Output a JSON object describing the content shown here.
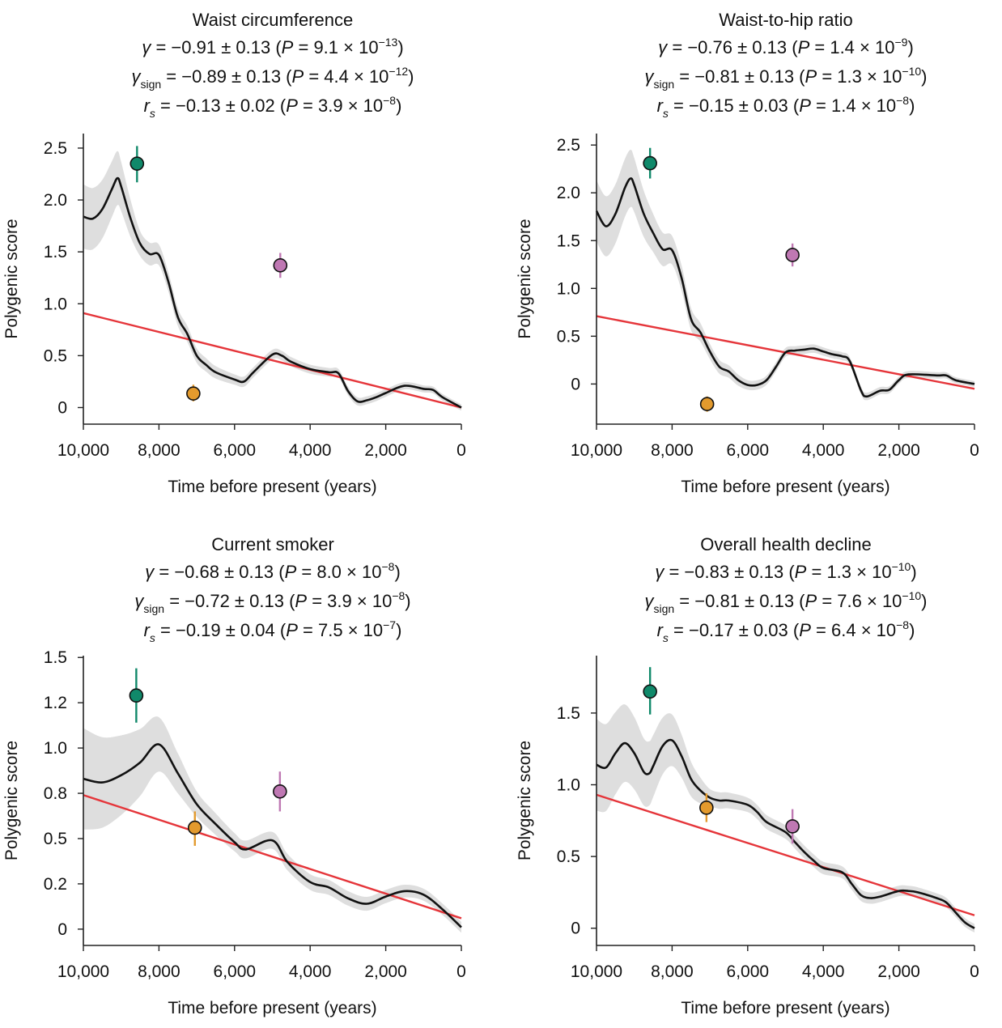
{
  "notation": {
    "eq": " = ",
    "open": " (",
    "p": "P",
    "times": " × 10",
    "close": ")"
  },
  "colors": {
    "curve": "#111111",
    "band": "#dedede",
    "fit": "#e5353a",
    "green": "#10896a",
    "orange": "#e39a2d",
    "purple": "#bf78b3"
  },
  "chart_data": [
    {
      "type": "line",
      "title": "Waist circumference",
      "stats": [
        {
          "symbol": "γ",
          "sub": "",
          "estimate": "−0.91 ± 0.13",
          "p_mantissa": "9.1",
          "p_exponent": "−13"
        },
        {
          "symbol": "γ",
          "sub": "sign",
          "estimate": "−0.89 ± 0.13",
          "p_mantissa": "4.4",
          "p_exponent": "−12"
        },
        {
          "symbol": "r",
          "sub": "s",
          "estimate": "−0.13 ± 0.02",
          "p_mantissa": "3.9",
          "p_exponent": "−8"
        }
      ],
      "xlabel": "Time before present (years)",
      "ylabel": "Polygenic score",
      "xlim": [
        10000,
        0
      ],
      "ylim": [
        -0.16,
        2.64
      ],
      "xticks": [
        10000,
        8000,
        6000,
        4000,
        2000,
        0
      ],
      "xtick_labels": [
        "10,000",
        "8,000",
        "6,000",
        "4,000",
        "2,000",
        "0"
      ],
      "yticks": [
        0,
        0.5,
        1.0,
        1.5,
        2.0,
        2.5
      ],
      "ytick_labels": [
        "0",
        "0.5",
        "1.0",
        "1.5",
        "2.0",
        "2.5"
      ],
      "curve": [
        [
          10000,
          1.84
        ],
        [
          9750,
          1.82
        ],
        [
          9500,
          1.91
        ],
        [
          9250,
          2.1
        ],
        [
          9100,
          2.21
        ],
        [
          9000,
          2.13
        ],
        [
          8750,
          1.82
        ],
        [
          8500,
          1.58
        ],
        [
          8250,
          1.48
        ],
        [
          8000,
          1.47
        ],
        [
          7750,
          1.21
        ],
        [
          7500,
          0.87
        ],
        [
          7250,
          0.71
        ],
        [
          7000,
          0.5
        ],
        [
          6750,
          0.41
        ],
        [
          6500,
          0.34
        ],
        [
          6000,
          0.27
        ],
        [
          5750,
          0.25
        ],
        [
          5500,
          0.34
        ],
        [
          5000,
          0.51
        ],
        [
          4750,
          0.5
        ],
        [
          4500,
          0.44
        ],
        [
          4000,
          0.37
        ],
        [
          3500,
          0.34
        ],
        [
          3250,
          0.33
        ],
        [
          3000,
          0.16
        ],
        [
          2750,
          0.06
        ],
        [
          2500,
          0.07
        ],
        [
          2250,
          0.1
        ],
        [
          2000,
          0.14
        ],
        [
          1500,
          0.21
        ],
        [
          1000,
          0.18
        ],
        [
          750,
          0.17
        ],
        [
          500,
          0.1
        ],
        [
          0,
          0.0
        ]
      ],
      "ci_halfwidth": [
        [
          10000,
          0.31
        ],
        [
          9100,
          0.26
        ],
        [
          8500,
          0.12
        ],
        [
          8000,
          0.1
        ],
        [
          7000,
          0.07
        ],
        [
          6000,
          0.05
        ],
        [
          0,
          0.03
        ]
      ],
      "fit_line": {
        "x": [
          10000,
          0
        ],
        "y": [
          0.91,
          0.0
        ]
      },
      "points": [
        {
          "group": "green",
          "x": 8580,
          "y": 2.35,
          "lo": 2.17,
          "hi": 2.52
        },
        {
          "group": "orange",
          "x": 7090,
          "y": 0.135,
          "lo": 0.06,
          "hi": 0.22
        },
        {
          "group": "purple",
          "x": 4790,
          "y": 1.37,
          "lo": 1.25,
          "hi": 1.49
        }
      ]
    },
    {
      "type": "line",
      "title": "Waist-to-hip ratio",
      "stats": [
        {
          "symbol": "γ",
          "sub": "",
          "estimate": "−0.76 ± 0.13",
          "p_mantissa": "1.4",
          "p_exponent": "−9"
        },
        {
          "symbol": "γ",
          "sub": "sign",
          "estimate": "−0.81 ± 0.13",
          "p_mantissa": "1.3",
          "p_exponent": "−10"
        },
        {
          "symbol": "r",
          "sub": "s",
          "estimate": "−0.15 ± 0.03",
          "p_mantissa": "1.4",
          "p_exponent": "−8"
        }
      ],
      "xlabel": "Time before present (years)",
      "ylabel": "Polygenic score",
      "xlim": [
        10000,
        0
      ],
      "ylim": [
        -0.42,
        2.62
      ],
      "xticks": [
        10000,
        8000,
        6000,
        4000,
        2000,
        0
      ],
      "xtick_labels": [
        "10,000",
        "8,000",
        "6,000",
        "4,000",
        "2,000",
        "0"
      ],
      "yticks": [
        0,
        0.5,
        1.0,
        1.5,
        2.0,
        2.5
      ],
      "ytick_labels": [
        "0",
        "0.5",
        "1.0",
        "1.5",
        "2.0",
        "2.5"
      ],
      "curve": [
        [
          10000,
          1.81
        ],
        [
          9750,
          1.65
        ],
        [
          9500,
          1.78
        ],
        [
          9250,
          2.05
        ],
        [
          9100,
          2.15
        ],
        [
          9000,
          2.08
        ],
        [
          8750,
          1.78
        ],
        [
          8500,
          1.58
        ],
        [
          8250,
          1.41
        ],
        [
          8000,
          1.4
        ],
        [
          7750,
          1.11
        ],
        [
          7500,
          0.68
        ],
        [
          7250,
          0.54
        ],
        [
          7000,
          0.34
        ],
        [
          6750,
          0.18
        ],
        [
          6500,
          0.13
        ],
        [
          6250,
          0.04
        ],
        [
          6000,
          -0.01
        ],
        [
          5750,
          -0.01
        ],
        [
          5500,
          0.04
        ],
        [
          5250,
          0.18
        ],
        [
          5000,
          0.33
        ],
        [
          4750,
          0.35
        ],
        [
          4500,
          0.36
        ],
        [
          4250,
          0.37
        ],
        [
          4000,
          0.34
        ],
        [
          3750,
          0.31
        ],
        [
          3500,
          0.29
        ],
        [
          3300,
          0.24
        ],
        [
          3000,
          -0.07
        ],
        [
          2850,
          -0.13
        ],
        [
          2500,
          -0.07
        ],
        [
          2250,
          -0.06
        ],
        [
          2000,
          0.04
        ],
        [
          1750,
          0.1
        ],
        [
          1000,
          0.09
        ],
        [
          750,
          0.09
        ],
        [
          500,
          0.04
        ],
        [
          0,
          0.0
        ]
      ],
      "ci_halfwidth": [
        [
          10000,
          0.32
        ],
        [
          9100,
          0.3
        ],
        [
          8500,
          0.2
        ],
        [
          8000,
          0.15
        ],
        [
          7000,
          0.08
        ],
        [
          6000,
          0.05
        ],
        [
          0,
          0.03
        ]
      ],
      "fit_line": {
        "x": [
          10000,
          0
        ],
        "y": [
          0.71,
          -0.05
        ]
      },
      "points": [
        {
          "group": "green",
          "x": 8583,
          "y": 2.31,
          "lo": 2.15,
          "hi": 2.47
        },
        {
          "group": "orange",
          "x": 7074,
          "y": -0.21,
          "lo": -0.29,
          "hi": -0.13
        },
        {
          "group": "purple",
          "x": 4815,
          "y": 1.35,
          "lo": 1.23,
          "hi": 1.47
        }
      ]
    },
    {
      "type": "line",
      "title": "Current smoker",
      "stats": [
        {
          "symbol": "γ",
          "sub": "",
          "estimate": "−0.68 ± 0.13",
          "p_mantissa": "8.0",
          "p_exponent": "−8"
        },
        {
          "symbol": "γ",
          "sub": "sign",
          "estimate": "−0.72 ± 0.13",
          "p_mantissa": "3.9",
          "p_exponent": "−8"
        },
        {
          "symbol": "r",
          "sub": "s",
          "estimate": "−0.19 ± 0.04",
          "p_mantissa": "7.5",
          "p_exponent": "−7"
        }
      ],
      "xlabel": "Time before present (years)",
      "ylabel": "Polygenic score",
      "xlim": [
        10000,
        0
      ],
      "ylim": [
        -0.09,
        1.51
      ],
      "xticks": [
        10000,
        8000,
        6000,
        4000,
        2000,
        0
      ],
      "xtick_labels": [
        "10,000",
        "8,000",
        "6,000",
        "4,000",
        "2,000",
        "0"
      ],
      "yticks": [
        0,
        0.25,
        0.5,
        0.75,
        1.0,
        1.25,
        1.5
      ],
      "ytick_labels": [
        "0",
        "0.2",
        "0.5",
        "0.8",
        "1.0",
        "1.2",
        "1.5"
      ],
      "curve": [
        [
          10000,
          0.83
        ],
        [
          9500,
          0.81
        ],
        [
          9000,
          0.85
        ],
        [
          8500,
          0.92
        ],
        [
          8000,
          1.02
        ],
        [
          7500,
          0.86
        ],
        [
          7000,
          0.69
        ],
        [
          6500,
          0.58
        ],
        [
          6000,
          0.48
        ],
        [
          5700,
          0.44
        ],
        [
          5000,
          0.49
        ],
        [
          4600,
          0.37
        ],
        [
          4000,
          0.26
        ],
        [
          3500,
          0.23
        ],
        [
          3000,
          0.17
        ],
        [
          2500,
          0.14
        ],
        [
          2000,
          0.18
        ],
        [
          1500,
          0.21
        ],
        [
          1000,
          0.19
        ],
        [
          500,
          0.11
        ],
        [
          0,
          0.01
        ]
      ],
      "ci_halfwidth": [
        [
          10000,
          0.28
        ],
        [
          9000,
          0.22
        ],
        [
          8000,
          0.15
        ],
        [
          7000,
          0.07
        ],
        [
          6000,
          0.05
        ],
        [
          0,
          0.03
        ]
      ],
      "fit_line": {
        "x": [
          10000,
          0
        ],
        "y": [
          0.74,
          0.06
        ]
      },
      "points": [
        {
          "group": "green",
          "x": 8600,
          "y": 1.29,
          "lo": 1.14,
          "hi": 1.44
        },
        {
          "group": "orange",
          "x": 7050,
          "y": 0.56,
          "lo": 0.46,
          "hi": 0.65
        },
        {
          "group": "purple",
          "x": 4800,
          "y": 0.76,
          "lo": 0.65,
          "hi": 0.87
        }
      ]
    },
    {
      "type": "line",
      "title": "Overall health decline",
      "stats": [
        {
          "symbol": "γ",
          "sub": "",
          "estimate": "−0.83 ± 0.13",
          "p_mantissa": "1.3",
          "p_exponent": "−10"
        },
        {
          "symbol": "γ",
          "sub": "sign",
          "estimate": "−0.81 ± 0.13",
          "p_mantissa": "7.6",
          "p_exponent": "−10"
        },
        {
          "symbol": "r",
          "sub": "s",
          "estimate": "−0.17 ± 0.03",
          "p_mantissa": "6.4",
          "p_exponent": "−8"
        }
      ],
      "xlabel": "Time before present (years)",
      "ylabel": "Polygenic score",
      "xlim": [
        10000,
        0
      ],
      "ylim": [
        -0.12,
        1.9
      ],
      "xticks": [
        10000,
        8000,
        6000,
        4000,
        2000,
        0
      ],
      "xtick_labels": [
        "10,000",
        "8,000",
        "6,000",
        "4,000",
        "2,000",
        "0"
      ],
      "yticks": [
        0,
        0.5,
        1.0,
        1.5
      ],
      "ytick_labels": [
        "0",
        "0.5",
        "1.0",
        "1.5"
      ],
      "curve": [
        [
          10000,
          1.14
        ],
        [
          9750,
          1.12
        ],
        [
          9500,
          1.22
        ],
        [
          9250,
          1.29
        ],
        [
          9000,
          1.22
        ],
        [
          8750,
          1.09
        ],
        [
          8600,
          1.08
        ],
        [
          8500,
          1.13
        ],
        [
          8250,
          1.27
        ],
        [
          8000,
          1.31
        ],
        [
          7750,
          1.2
        ],
        [
          7500,
          1.04
        ],
        [
          7250,
          0.96
        ],
        [
          7000,
          0.91
        ],
        [
          6750,
          0.89
        ],
        [
          6500,
          0.89
        ],
        [
          6000,
          0.86
        ],
        [
          5750,
          0.81
        ],
        [
          5500,
          0.74
        ],
        [
          5000,
          0.67
        ],
        [
          4750,
          0.6
        ],
        [
          4500,
          0.53
        ],
        [
          4250,
          0.47
        ],
        [
          4000,
          0.42
        ],
        [
          3500,
          0.39
        ],
        [
          3250,
          0.31
        ],
        [
          3000,
          0.23
        ],
        [
          2750,
          0.21
        ],
        [
          2500,
          0.22
        ],
        [
          2000,
          0.26
        ],
        [
          1750,
          0.26
        ],
        [
          1500,
          0.25
        ],
        [
          1000,
          0.21
        ],
        [
          750,
          0.18
        ],
        [
          500,
          0.11
        ],
        [
          250,
          0.04
        ],
        [
          0,
          0.0
        ]
      ],
      "ci_halfwidth": [
        [
          10000,
          0.32
        ],
        [
          9250,
          0.27
        ],
        [
          8000,
          0.18
        ],
        [
          7000,
          0.06
        ],
        [
          6000,
          0.05
        ],
        [
          0,
          0.03
        ]
      ],
      "fit_line": {
        "x": [
          10000,
          0
        ],
        "y": [
          0.93,
          0.09
        ]
      },
      "points": [
        {
          "group": "green",
          "x": 8583,
          "y": 1.65,
          "lo": 1.49,
          "hi": 1.82
        },
        {
          "group": "orange",
          "x": 7091,
          "y": 0.84,
          "lo": 0.74,
          "hi": 0.94
        },
        {
          "group": "purple",
          "x": 4815,
          "y": 0.71,
          "lo": 0.59,
          "hi": 0.83
        }
      ]
    }
  ]
}
